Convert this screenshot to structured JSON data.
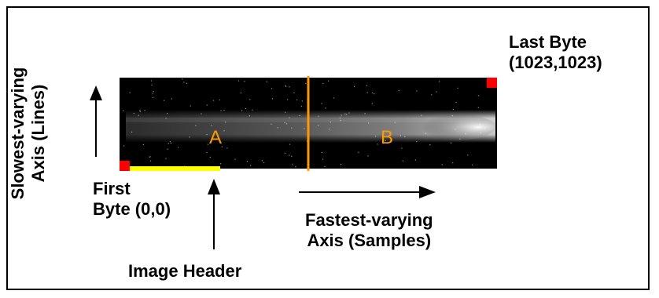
{
  "labels": {
    "last_byte_line1": "Last Byte",
    "last_byte_line2": "(1023,1023)",
    "first_byte_line1": "First",
    "first_byte_line2": "Byte (0,0)",
    "slow_axis_line1": "Slowest-varying",
    "slow_axis_line2": "Axis (Lines)",
    "fast_axis_line1": "Fastest-varying",
    "fast_axis_line2": "Axis (Samples)",
    "image_header": "Image Header",
    "region_a": "A",
    "region_b": "B"
  },
  "colors": {
    "corner_marker": "#ff0000",
    "header_bar": "#ffff00",
    "divider": "#ff9900",
    "region_text": "#ff9900",
    "image_background": "#000000"
  }
}
